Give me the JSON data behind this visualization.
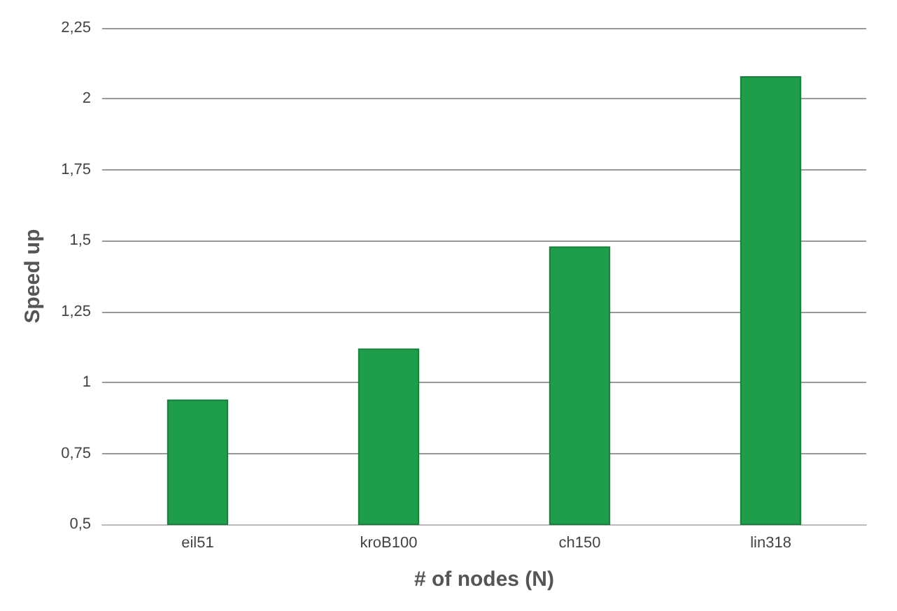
{
  "chart_data": {
    "type": "bar",
    "xlabel": "# of nodes (N)",
    "ylabel": "Speed up",
    "categories": [
      "eil51",
      "kroB100",
      "ch150",
      "lin318"
    ],
    "values": [
      0.94,
      1.12,
      1.48,
      2.08
    ],
    "color": "#1e9e4a",
    "ylim": [
      0.5,
      2.25
    ],
    "yticks": [
      {
        "value": 0.5,
        "label": "0,5"
      },
      {
        "value": 0.75,
        "label": "0,75"
      },
      {
        "value": 1,
        "label": "1"
      },
      {
        "value": 1.25,
        "label": "1,25"
      },
      {
        "value": 1.5,
        "label": "1,5"
      },
      {
        "value": 1.75,
        "label": "1,75"
      },
      {
        "value": 2,
        "label": "2"
      },
      {
        "value": 2.25,
        "label": "2,25"
      }
    ],
    "grid": "y"
  }
}
